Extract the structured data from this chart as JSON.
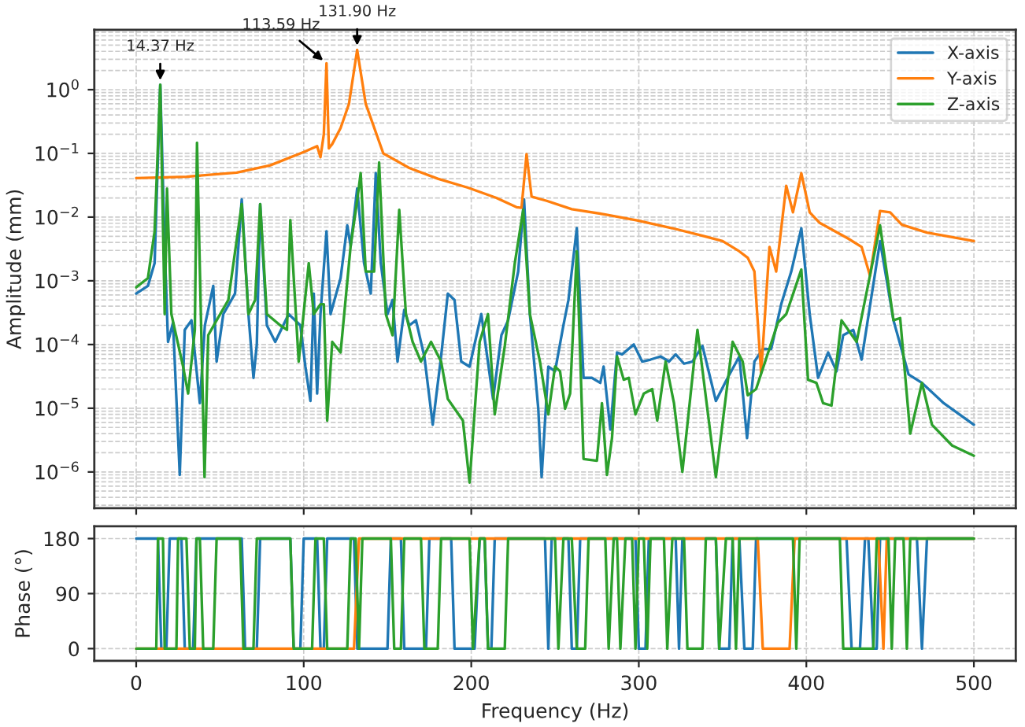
{
  "chart_data": [
    {
      "type": "line",
      "ylabel": "Amplitude (mm)",
      "log": "y",
      "grid": true,
      "legend": "top right",
      "tick_labels": "y",
      "xlim": [
        -25,
        525
      ],
      "xticks": [
        0,
        100,
        200,
        300,
        400,
        500
      ],
      "ylim": [
        2.7e-07,
        8.7
      ],
      "yticks": [
        {
          "value": 1e-06,
          "label": "10$^{−6}$"
        },
        {
          "value": 1e-05,
          "label": "10$^{−5}$"
        },
        {
          "value": 0.0001,
          "label": "10$^{−4}$"
        },
        {
          "value": 0.001,
          "label": "10$^{−3}$"
        },
        {
          "value": 0.01,
          "label": "10$^{−2}$"
        },
        {
          "value": 0.1,
          "label": "10$^{−1}$"
        },
        {
          "value": 1,
          "label": "10$^{0}$"
        }
      ],
      "annotations": [
        {
          "text": "14.37 Hz",
          "x": 14.37,
          "y": 1.2
        },
        {
          "text": "113.59 Hz",
          "x": 113.59,
          "y": 2.6
        },
        {
          "text": "131.90 Hz",
          "x": 131.9,
          "y": 4.2
        }
      ],
      "series": [
        {
          "name": "X-axis",
          "color": "#1f77b4",
          "x": [
            0,
            7,
            11,
            14.37,
            17,
            19,
            22,
            26,
            29,
            33,
            38,
            41,
            46,
            48,
            52,
            59,
            63,
            67,
            70,
            72,
            74,
            78,
            83,
            91,
            98,
            101,
            104,
            106,
            108,
            110,
            113.59,
            116,
            122,
            126,
            128,
            131.9,
            136,
            140,
            143,
            146,
            150,
            153,
            156,
            160,
            163,
            167,
            172,
            177,
            182,
            186,
            190,
            194,
            199,
            206,
            213,
            218,
            222,
            228,
            231.5,
            235,
            240,
            242,
            246,
            250,
            255,
            258,
            263,
            267,
            272,
            277,
            279,
            283,
            287,
            290,
            297,
            302,
            307,
            313,
            318,
            322,
            327,
            332,
            338,
            346,
            353,
            360,
            364.6,
            369,
            374,
            379,
            385,
            391,
            397,
            402,
            407,
            413,
            418,
            422,
            428,
            433,
            444,
            452,
            461,
            469,
            482,
            500
          ],
          "values": [
            0.00063,
            0.00083,
            0.0019,
            1.2,
            0.0035,
            0.00011,
            0.00022,
            9e-07,
            0.00017,
            0.00024,
            1.2e-05,
            0.0002,
            0.00083,
            5.4e-05,
            0.0003,
            0.00063,
            0.019,
            0.0003,
            3e-05,
            0.0001,
            0.016,
            0.0002,
            0.00011,
            0.0003,
            0.0002,
            4.5e-05,
            1.3e-05,
            0.00063,
            1.7e-05,
            0.0003,
            0.006,
            0.0003,
            0.0011,
            0.0074,
            0.0035,
            0.028,
            0.0019,
            0.00063,
            0.049,
            0.0019,
            0.0003,
            0.0005,
            5.4e-05,
            0.00035,
            0.0002,
            0.00024,
            6.5e-05,
            5.5e-06,
            6.5e-05,
            0.00063,
            0.0005,
            5.4e-05,
            4.5e-05,
            0.0003,
            1.4e-05,
            0.00014,
            0.00024,
            0.0014,
            0.019,
            0.0003,
            9.8e-06,
            8.3e-07,
            4.5e-05,
            3.8e-05,
            0.0002,
            0.0005,
            0.0067,
            3e-05,
            3e-05,
            2.5e-05,
            4.5e-05,
            4.6e-06,
            7.5e-05,
            7e-05,
            0.0001,
            5.4e-05,
            5.8e-05,
            6.5e-05,
            5.4e-05,
            7e-05,
            5e-05,
            5.4e-05,
            9.5e-05,
            1.3e-05,
            3e-05,
            6.5e-05,
            3.4e-06,
            5.4e-05,
            8.5e-05,
            8.5e-05,
            0.00043,
            0.0014,
            0.0067,
            0.0003,
            3e-05,
            7.5e-05,
            3.8e-05,
            0.00014,
            0.00017,
            5.8e-05,
            0.0042,
            0.00024,
            3.4e-05,
            2.5e-05,
            1.2e-05,
            5.5e-06
          ]
        },
        {
          "name": "Y-axis",
          "color": "#ff7f0e",
          "x": [
            0,
            30,
            60,
            80,
            100,
            108,
            110,
            112,
            113.59,
            115,
            117,
            122,
            127,
            131.9,
            137,
            147.5,
            163,
            180,
            198,
            215,
            227,
            230,
            233,
            236,
            245,
            260,
            280,
            299,
            320,
            338,
            350,
            360,
            365,
            369,
            373,
            378,
            382,
            388,
            392,
            397,
            402,
            408,
            425,
            433,
            438,
            444,
            450,
            457,
            472,
            500
          ],
          "values": [
            0.041,
            0.043,
            0.05,
            0.065,
            0.105,
            0.13,
            0.087,
            0.2,
            2.6,
            0.12,
            0.14,
            0.25,
            0.6,
            4.2,
            0.6,
            0.1,
            0.059,
            0.04,
            0.029,
            0.02,
            0.0143,
            0.014,
            0.097,
            0.021,
            0.018,
            0.0133,
            0.011,
            0.0089,
            0.0067,
            0.0051,
            0.0042,
            0.0029,
            0.0023,
            0.0014,
            3.6e-05,
            0.0034,
            0.0014,
            0.031,
            0.0119,
            0.049,
            0.0119,
            0.0081,
            0.0046,
            0.0034,
            0.0012,
            0.0125,
            0.0119,
            0.0076,
            0.0057,
            0.0042
          ]
        },
        {
          "name": "Z-axis",
          "color": "#2ca02c",
          "x": [
            0,
            7,
            11,
            14.37,
            17,
            18.4,
            21,
            28,
            31,
            35,
            36.3,
            40.8,
            43,
            48,
            55,
            63,
            67,
            71,
            74,
            78,
            86,
            90,
            92,
            97,
            103,
            106,
            110,
            112,
            114,
            117,
            122,
            128,
            132,
            134,
            137,
            142,
            145,
            149,
            153,
            157,
            161,
            165,
            170,
            176,
            182,
            186,
            195,
            199,
            205,
            210,
            214,
            220,
            226,
            231,
            235,
            241,
            246,
            250,
            253,
            256,
            259,
            263,
            267,
            275,
            278,
            281,
            284,
            287,
            291,
            294,
            298,
            303,
            308,
            311,
            316,
            321,
            326,
            335,
            346,
            356,
            362,
            365,
            370,
            375,
            383,
            388,
            397,
            401,
            406,
            410,
            415,
            421,
            430,
            444,
            452,
            456,
            462,
            469,
            475,
            487,
            500
          ],
          "values": [
            0.00079,
            0.0011,
            0.006,
            1.2,
            0.0003,
            0.028,
            0.0003,
            4.5e-05,
            1.7e-05,
            0.00017,
            0.147,
            8.3e-07,
            0.00014,
            0.00024,
            0.0005,
            0.016,
            0.0003,
            0.0005,
            0.016,
            0.0003,
            0.0002,
            0.00017,
            0.009,
            5.4e-05,
            0.0019,
            0.0003,
            0.00043,
            0.00043,
            6.4e-06,
            0.00011,
            7.5e-05,
            0.0035,
            0.019,
            0.049,
            0.0014,
            0.0014,
            0.072,
            0.0003,
            0.00014,
            0.013,
            0.0003,
            0.00011,
            5.4e-05,
            0.00011,
            5.4e-05,
            1.4e-05,
            6.4e-06,
            6.8e-07,
            0.00011,
            0.0003,
            8e-06,
            9.5e-05,
            0.0019,
            0.013,
            0.0003,
            5.4e-05,
            8e-06,
            4.5e-05,
            3.8e-05,
            9.8e-06,
            1.7e-05,
            0.0029,
            1.6e-06,
            1.5e-06,
            1.2e-05,
            9e-07,
            3.4e-06,
            6.5e-05,
            2.8e-05,
            3e-05,
            8e-06,
            1.7e-05,
            2e-05,
            6.4e-06,
            5.4e-05,
            1.2e-05,
            1e-06,
            0.00017,
            8.3e-07,
            0.00011,
            5.4e-05,
            1.6e-05,
            2e-05,
            5e-05,
            0.00022,
            0.0003,
            0.0015,
            2.8e-05,
            2.5e-05,
            1.2e-05,
            1.1e-05,
            0.00024,
            0.00011,
            0.0074,
            0.00024,
            0.00026,
            4e-06,
            2.5e-05,
            5.5e-06,
            2.6e-06,
            1.8e-06
          ]
        }
      ]
    },
    {
      "type": "line",
      "xlabel": "Frequency (Hz)",
      "ylabel": "Phase (°)",
      "grid": true,
      "xlim": [
        -25,
        525
      ],
      "xticks": [
        0,
        100,
        200,
        300,
        400,
        500
      ],
      "ylim": [
        -20,
        200
      ],
      "yticks": [
        0,
        90,
        180
      ],
      "series": [
        {
          "color": "#1f77b4",
          "x": [
            0,
            13,
            15,
            18,
            20,
            27,
            29,
            34,
            36,
            63,
            65,
            72,
            74,
            92,
            94,
            98,
            100,
            108,
            110,
            112,
            114,
            130,
            132,
            150,
            152,
            158,
            160,
            173,
            175,
            188,
            190,
            202,
            205,
            208,
            210,
            212,
            214,
            244,
            246,
            248,
            258,
            260,
            263,
            265,
            298,
            300,
            304,
            306,
            322,
            324,
            326,
            346,
            348,
            354,
            356,
            360,
            363,
            368,
            370,
            424,
            427,
            432,
            435,
            437,
            440,
            442,
            444,
            466,
            469,
            472,
            500
          ],
          "values": [
            180,
            180,
            0,
            0,
            180,
            180,
            0,
            0,
            180,
            180,
            0,
            0,
            180,
            180,
            0,
            0,
            180,
            180,
            0,
            0,
            180,
            180,
            0,
            0,
            180,
            180,
            0,
            0,
            180,
            180,
            0,
            0,
            180,
            180,
            0,
            0,
            180,
            180,
            0,
            180,
            180,
            0,
            0,
            180,
            180,
            0,
            0,
            180,
            180,
            0,
            180,
            180,
            0,
            0,
            180,
            180,
            0,
            0,
            180,
            180,
            0,
            0,
            180,
            180,
            0,
            0,
            180,
            180,
            0,
            180,
            180
          ]
        },
        {
          "color": "#ff7f0e",
          "x": [
            0,
            130,
            133,
            371,
            374,
            390,
            393,
            443,
            446,
            448,
            500
          ],
          "values": [
            0,
            0,
            180,
            180,
            0,
            0,
            180,
            180,
            0,
            180,
            180
          ]
        },
        {
          "color": "#2ca02c",
          "x": [
            0,
            12,
            13,
            16,
            17,
            24,
            25,
            30,
            32,
            35,
            36,
            38,
            40,
            46,
            48,
            62,
            64,
            70,
            72,
            92,
            94,
            105,
            107,
            112,
            114,
            126,
            128,
            131,
            133,
            135,
            152,
            154,
            158,
            160,
            170,
            172,
            180,
            182,
            199,
            201,
            205,
            208,
            210,
            220,
            222,
            250,
            252,
            255,
            260,
            263,
            268,
            270,
            280,
            282,
            285,
            287,
            289,
            292,
            296,
            298,
            300,
            303,
            305,
            307,
            315,
            317,
            320,
            327,
            329,
            338,
            340,
            346,
            348,
            352,
            356,
            358,
            360,
            392,
            394,
            396,
            420,
            422,
            440,
            442,
            449,
            451,
            453,
            458,
            460,
            462,
            500
          ],
          "values": [
            0,
            0,
            180,
            180,
            0,
            0,
            180,
            180,
            0,
            0,
            180,
            180,
            0,
            0,
            180,
            180,
            0,
            0,
            180,
            180,
            0,
            0,
            180,
            180,
            0,
            0,
            180,
            180,
            0,
            180,
            180,
            0,
            0,
            180,
            180,
            0,
            0,
            180,
            180,
            0,
            180,
            180,
            0,
            0,
            180,
            180,
            0,
            180,
            180,
            0,
            0,
            180,
            180,
            0,
            180,
            180,
            0,
            180,
            180,
            0,
            180,
            180,
            0,
            180,
            180,
            0,
            180,
            180,
            0,
            0,
            180,
            180,
            0,
            180,
            180,
            0,
            180,
            180,
            0,
            180,
            180,
            0,
            0,
            180,
            180,
            0,
            180,
            180,
            0,
            180,
            180
          ]
        }
      ]
    }
  ]
}
